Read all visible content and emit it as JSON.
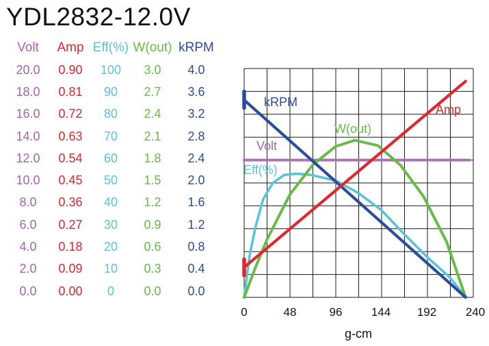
{
  "title": "YDL2832-12.0V",
  "colors": {
    "volt": "#A763B1",
    "amp": "#E3262B",
    "eff": "#58C5D8",
    "wout": "#66BC45",
    "krpm": "#2B4C9F",
    "volt_line": "#B070B8",
    "grid": "#1a1a1a",
    "axis_text": "#111111"
  },
  "table": {
    "columns": [
      {
        "key": "volt",
        "label": "Volt"
      },
      {
        "key": "amp",
        "label": "Amp"
      },
      {
        "key": "eff",
        "label": "Eff(%)"
      },
      {
        "key": "wout",
        "label": "W(out)"
      },
      {
        "key": "krpm",
        "label": "kRPM"
      }
    ],
    "rows": [
      [
        "20.0",
        "0.90",
        "100",
        "3.0",
        "4.0"
      ],
      [
        "18.0",
        "0.81",
        "90",
        "2.7",
        "3.6"
      ],
      [
        "16.0",
        "0.72",
        "80",
        "2.4",
        "3.2"
      ],
      [
        "14.0",
        "0.63",
        "70",
        "2.1",
        "2.8"
      ],
      [
        "12.0",
        "0.54",
        "60",
        "1.8",
        "2.4"
      ],
      [
        "10.0",
        "0.45",
        "50",
        "1.5",
        "2.0"
      ],
      [
        "8.0",
        "0.36",
        "40",
        "1.2",
        "1.6"
      ],
      [
        "6.0",
        "0.27",
        "30",
        "0.9",
        "1.2"
      ],
      [
        "4.0",
        "0.18",
        "20",
        "0.6",
        "0.8"
      ],
      [
        "2.0",
        "0.09",
        "10",
        "0.3",
        "0.4"
      ],
      [
        "0.0",
        "0.00",
        "0",
        "0.0",
        "0.0"
      ]
    ]
  },
  "chart_data": {
    "type": "line",
    "xlabel": "g-cm",
    "xlim": [
      0,
      240
    ],
    "x_ticks": [
      "0",
      "48",
      "96",
      "144",
      "192",
      "240"
    ],
    "grid": true,
    "grid_divisions": {
      "x": 10,
      "y": 10
    },
    "axis_scales": {
      "volt": [
        0,
        20
      ],
      "amp": [
        0,
        0.9
      ],
      "eff": [
        0,
        100
      ],
      "wout": [
        0,
        3.0
      ],
      "krpm": [
        0,
        4.0
      ]
    },
    "series": [
      {
        "name": "Volt",
        "key": "volt",
        "color_key": "volt_line",
        "axis_max": 20,
        "width": 4,
        "points": [
          [
            0,
            12.0
          ],
          [
            236,
            12.0
          ]
        ]
      },
      {
        "name": "Eff(%)",
        "key": "eff",
        "color_key": "eff",
        "axis_max": 100,
        "width": 3.6,
        "points": [
          [
            0,
            0
          ],
          [
            3,
            10
          ],
          [
            6,
            19
          ],
          [
            12,
            31
          ],
          [
            20,
            43
          ],
          [
            30,
            50
          ],
          [
            42,
            53.5
          ],
          [
            55,
            54
          ],
          [
            70,
            53.5
          ],
          [
            96,
            51
          ],
          [
            120,
            45.5
          ],
          [
            144,
            38
          ],
          [
            168,
            27.5
          ],
          [
            192,
            17.5
          ],
          [
            216,
            8.5
          ],
          [
            232,
            0
          ]
        ]
      },
      {
        "name": "W(out)",
        "key": "wout",
        "color_key": "wout",
        "axis_max": 3.0,
        "width": 4,
        "points": [
          [
            0,
            0
          ],
          [
            12,
            0.4
          ],
          [
            24,
            0.76
          ],
          [
            48,
            1.35
          ],
          [
            72,
            1.74
          ],
          [
            96,
            1.98
          ],
          [
            116,
            2.06
          ],
          [
            140,
            1.99
          ],
          [
            164,
            1.73
          ],
          [
            188,
            1.32
          ],
          [
            212,
            0.73
          ],
          [
            232,
            0
          ]
        ]
      },
      {
        "name": "kRPM",
        "key": "krpm",
        "color_key": "krpm",
        "axis_max": 4.0,
        "width": 4.2,
        "points": [
          [
            0,
            3.45
          ],
          [
            232,
            0
          ]
        ],
        "cap": {
          "x": 0,
          "y1": 3.31,
          "y2": 3.6
        }
      },
      {
        "name": "Amp",
        "key": "amp",
        "color_key": "amp",
        "axis_max": 0.9,
        "width": 4.2,
        "points": [
          [
            0,
            0.118
          ],
          [
            232,
            0.85
          ]
        ],
        "cap": {
          "x": 0,
          "y1": 0.086,
          "y2": 0.15
        }
      }
    ]
  }
}
